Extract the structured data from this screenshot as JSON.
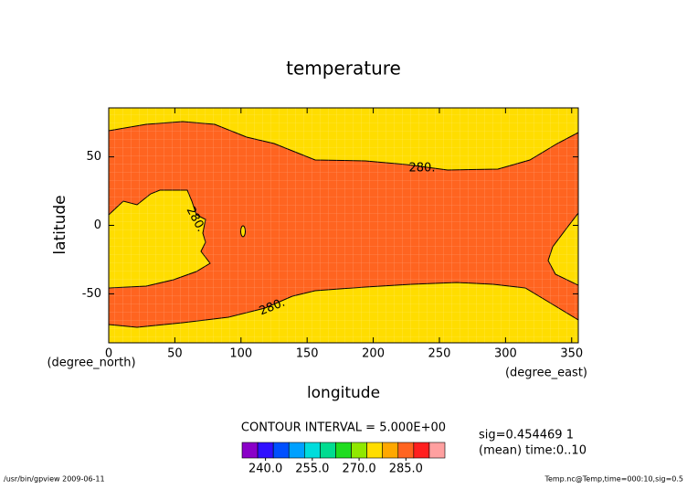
{
  "chart_data": {
    "type": "contour",
    "title": "temperature",
    "x_label": "longitude",
    "y_label": "latitude",
    "x_units": "(degree_east)",
    "y_units": "(degree_north)",
    "xlim": [
      0,
      355
    ],
    "ylim": [
      -85.76,
      85.76
    ],
    "xticks": [
      0,
      50,
      100,
      150,
      200,
      250,
      300,
      350
    ],
    "yticks": [
      -50,
      0,
      50
    ],
    "fill_colors": [
      "#ffdd00",
      "#ff6420"
    ],
    "contour_labels": [
      "280.",
      "280.",
      "280."
    ],
    "contour_interval_text": "CONTOUR INTERVAL = 5.000E+00",
    "colorbar": {
      "colors": [
        "#8a00c8",
        "#3010ff",
        "#0050ff",
        "#00a0ff",
        "#00dcdc",
        "#00dc90",
        "#20dc20",
        "#90e800",
        "#ffdd00",
        "#ffa800",
        "#ff6420",
        "#ff2020",
        "#ffa0a0"
      ],
      "lim": [
        232.5,
        297.5
      ],
      "ticks": [
        {
          "value": 240,
          "label": "240.0"
        },
        {
          "value": 255,
          "label": "255.0"
        },
        {
          "value": 270,
          "label": "270.0"
        },
        {
          "value": 285,
          "label": "285.0"
        }
      ]
    },
    "info_lines": [
      "sig=0.454469 1",
      "(mean) time:0..10"
    ],
    "footer_left": "/usr/bin/gpview  2009-06-11",
    "footer_right": "Temp.nc@Temp,time=000:10,sig=0.5"
  }
}
